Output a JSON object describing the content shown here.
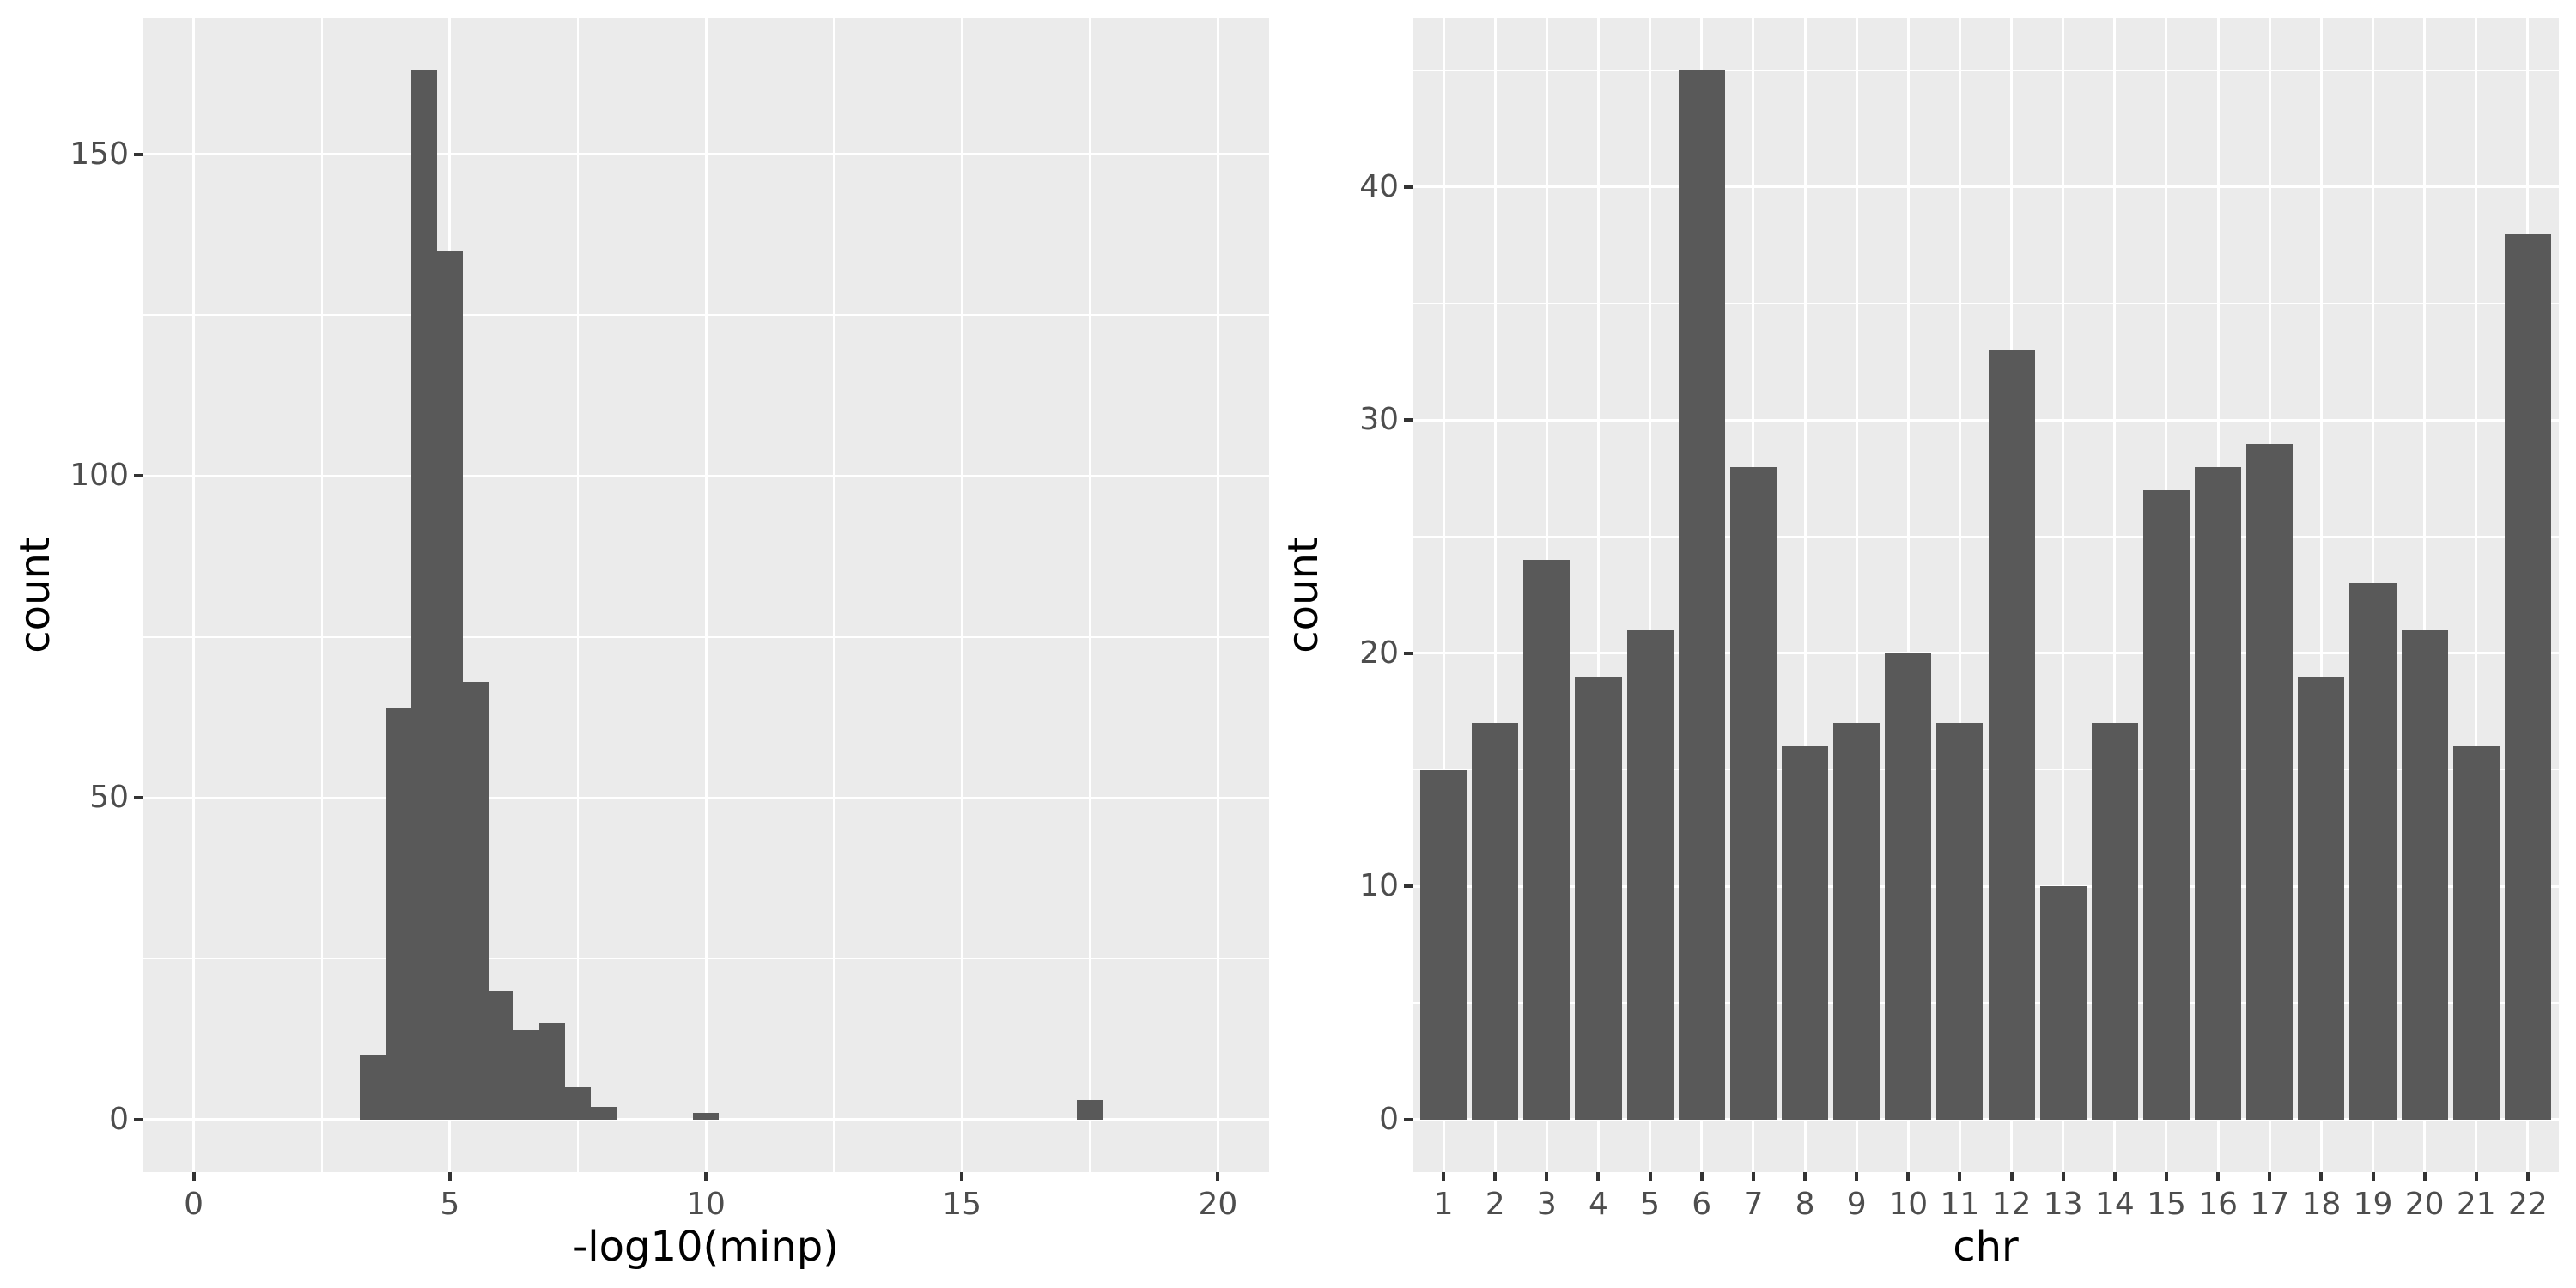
{
  "colors": {
    "bar": "#595959",
    "panel_background": "#EBEBEB",
    "gridline": "#FFFFFF",
    "tick_label": "#4D4D4D",
    "axis_title": "#000000",
    "tick_mark": "#333333",
    "page_background": "#FFFFFF"
  },
  "chart_data": [
    {
      "type": "histogram",
      "title": "",
      "xlabel": "-log10(minp)",
      "ylabel": "count",
      "x_ticks": [
        0,
        5,
        10,
        15,
        20
      ],
      "x_minor_ticks": [
        2.5,
        7.5,
        12.5,
        17.5
      ],
      "y_ticks": [
        0,
        50,
        100,
        150
      ],
      "y_minor_ticks": [
        25,
        75,
        125
      ],
      "xlim": [
        -1,
        21
      ],
      "ylim": [
        -8.15,
        171.15
      ],
      "grid": "on",
      "legend": "none",
      "bin_width": 0.5,
      "bins": [
        {
          "x": 3.25,
          "count": 10
        },
        {
          "x": 3.75,
          "count": 64
        },
        {
          "x": 4.25,
          "count": 163
        },
        {
          "x": 4.75,
          "count": 135
        },
        {
          "x": 5.25,
          "count": 68
        },
        {
          "x": 5.75,
          "count": 20
        },
        {
          "x": 6.25,
          "count": 14
        },
        {
          "x": 6.75,
          "count": 15
        },
        {
          "x": 7.25,
          "count": 5
        },
        {
          "x": 7.75,
          "count": 2
        },
        {
          "x": 9.75,
          "count": 1
        },
        {
          "x": 17.25,
          "count": 3
        }
      ]
    },
    {
      "type": "bar",
      "title": "",
      "xlabel": "chr",
      "ylabel": "count",
      "categories": [
        "1",
        "2",
        "3",
        "4",
        "5",
        "6",
        "7",
        "8",
        "9",
        "10",
        "11",
        "12",
        "13",
        "14",
        "15",
        "16",
        "17",
        "18",
        "19",
        "20",
        "21",
        "22"
      ],
      "values": [
        15,
        17,
        24,
        19,
        21,
        45,
        28,
        16,
        17,
        20,
        17,
        33,
        10,
        17,
        27,
        28,
        29,
        19,
        23,
        21,
        16,
        38
      ],
      "y_ticks": [
        0,
        10,
        20,
        30,
        40
      ],
      "y_minor_ticks": [
        5,
        15,
        25,
        35,
        45
      ],
      "ylim": [
        -2.25,
        47.25
      ],
      "bar_rel_width": 0.9,
      "grid": "on",
      "legend": "none"
    }
  ]
}
